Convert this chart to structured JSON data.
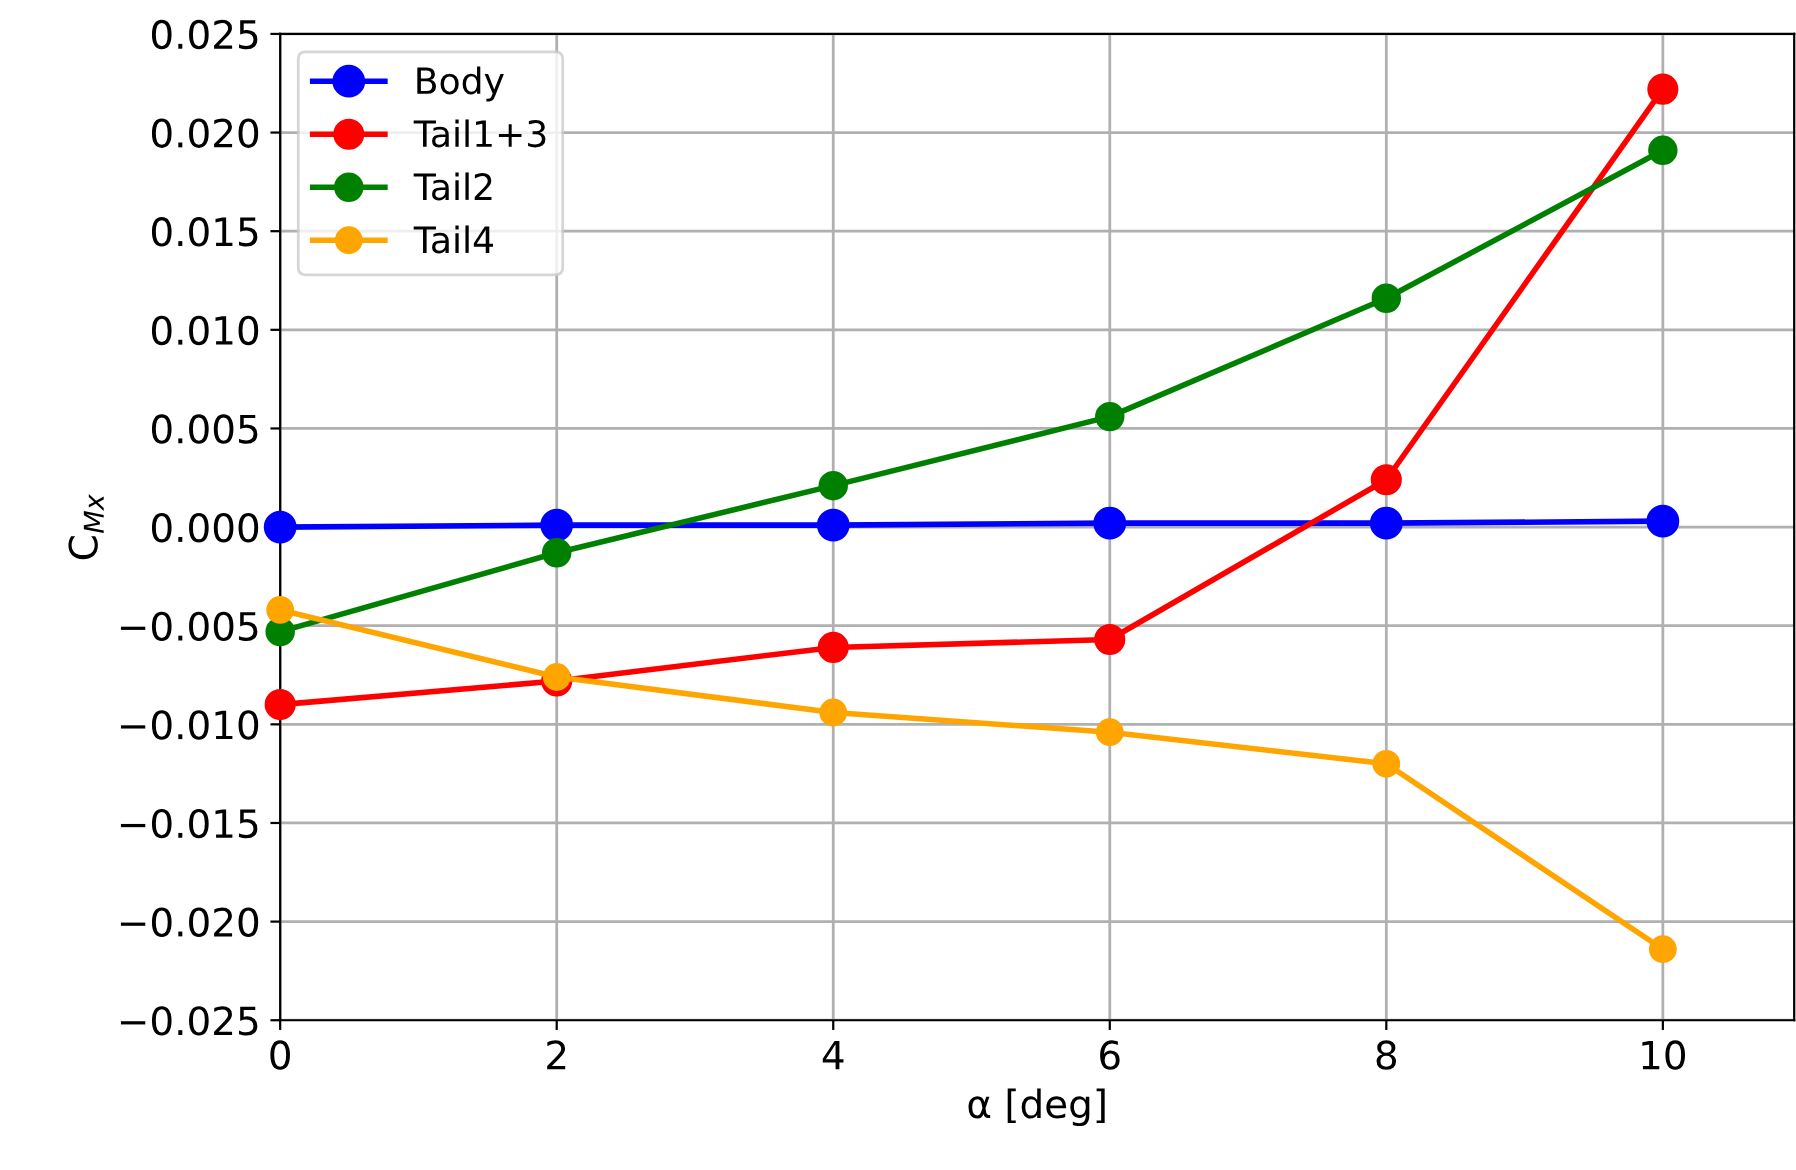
{
  "chart_data": {
    "type": "line",
    "xlabel": "α [deg]",
    "ylabel": "C$_{Mx}$",
    "x": [
      0,
      2,
      4,
      6,
      8,
      10
    ],
    "series": [
      {
        "name": "Body",
        "color": "#0000ff",
        "values": [
          0.0,
          0.0001,
          0.0001,
          0.0002,
          0.0002,
          0.0003
        ]
      },
      {
        "name": "Tail1+3",
        "color": "#ff0000",
        "values": [
          -0.009,
          -0.0078,
          -0.0061,
          -0.0057,
          0.0024,
          0.0222
        ]
      },
      {
        "name": "Tail2",
        "color": "#008000",
        "values": [
          -0.0053,
          -0.0013,
          0.0021,
          0.0056,
          0.0116,
          0.0191
        ]
      },
      {
        "name": "Tail4",
        "color": "#ffa500",
        "values": [
          -0.0042,
          -0.0076,
          -0.0094,
          -0.0104,
          -0.012,
          -0.0214
        ]
      }
    ],
    "xlim": [
      0,
      10.95
    ],
    "xticks": [
      0,
      2,
      4,
      6,
      8,
      10
    ],
    "ylim": [
      -0.025,
      0.025
    ],
    "yticks": [
      {
        "value": -0.025,
        "label": "−0.025"
      },
      {
        "value": -0.02,
        "label": "−0.020"
      },
      {
        "value": -0.015,
        "label": "−0.015"
      },
      {
        "value": -0.01,
        "label": "−0.010"
      },
      {
        "value": -0.005,
        "label": "−0.005"
      },
      {
        "value": 0,
        "label": "0.000"
      },
      {
        "value": 0.005,
        "label": "0.005"
      },
      {
        "value": 0.01,
        "label": "0.010"
      },
      {
        "value": 0.015,
        "label": "0.015"
      },
      {
        "value": 0.02,
        "label": "0.020"
      },
      {
        "value": 0.025,
        "label": "0.025"
      }
    ],
    "grid": true,
    "legend": "top left",
    "marker": "circle",
    "line_style": "solid"
  }
}
